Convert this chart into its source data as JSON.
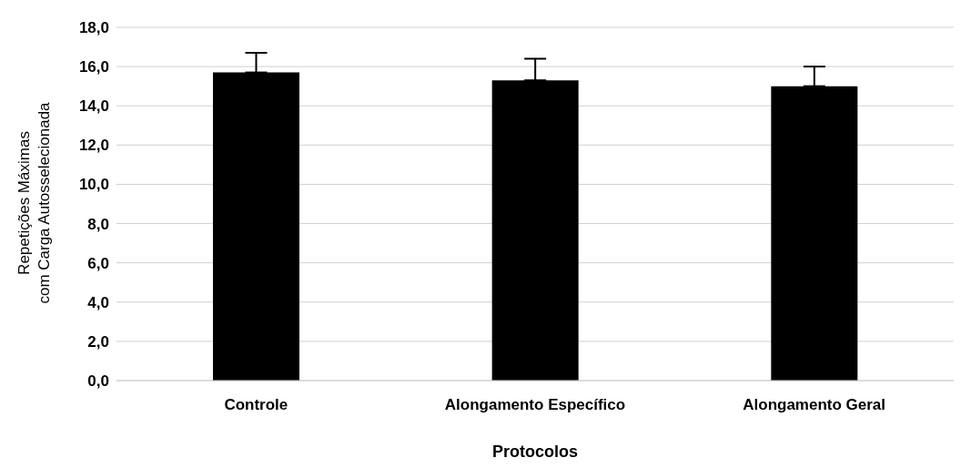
{
  "chart_data": {
    "type": "bar",
    "xlabel": "Protocolos",
    "ylabel": "Repetições Máximas\ncom Carga Autosselecionada",
    "categories": [
      "Controle",
      "Alongamento Específico",
      "Alongamento Geral"
    ],
    "values": [
      15.7,
      15.3,
      15.0
    ],
    "errors": [
      [
        15.7,
        16.7
      ],
      [
        15.3,
        16.4
      ],
      [
        15.0,
        16.0
      ]
    ],
    "color": "#000000",
    "ylim": [
      0,
      18
    ],
    "yticks": [
      {
        "value": 0,
        "label": "0,0"
      },
      {
        "value": 2,
        "label": "2,0"
      },
      {
        "value": 4,
        "label": "4,0"
      },
      {
        "value": 6,
        "label": "6,0"
      },
      {
        "value": 8,
        "label": "8,0"
      },
      {
        "value": 10,
        "label": "10,0"
      },
      {
        "value": 12,
        "label": "12,0"
      },
      {
        "value": 14,
        "label": "14,0"
      },
      {
        "value": 16,
        "label": "16,0"
      },
      {
        "value": 18,
        "label": "18,0"
      }
    ],
    "grid": "y"
  }
}
